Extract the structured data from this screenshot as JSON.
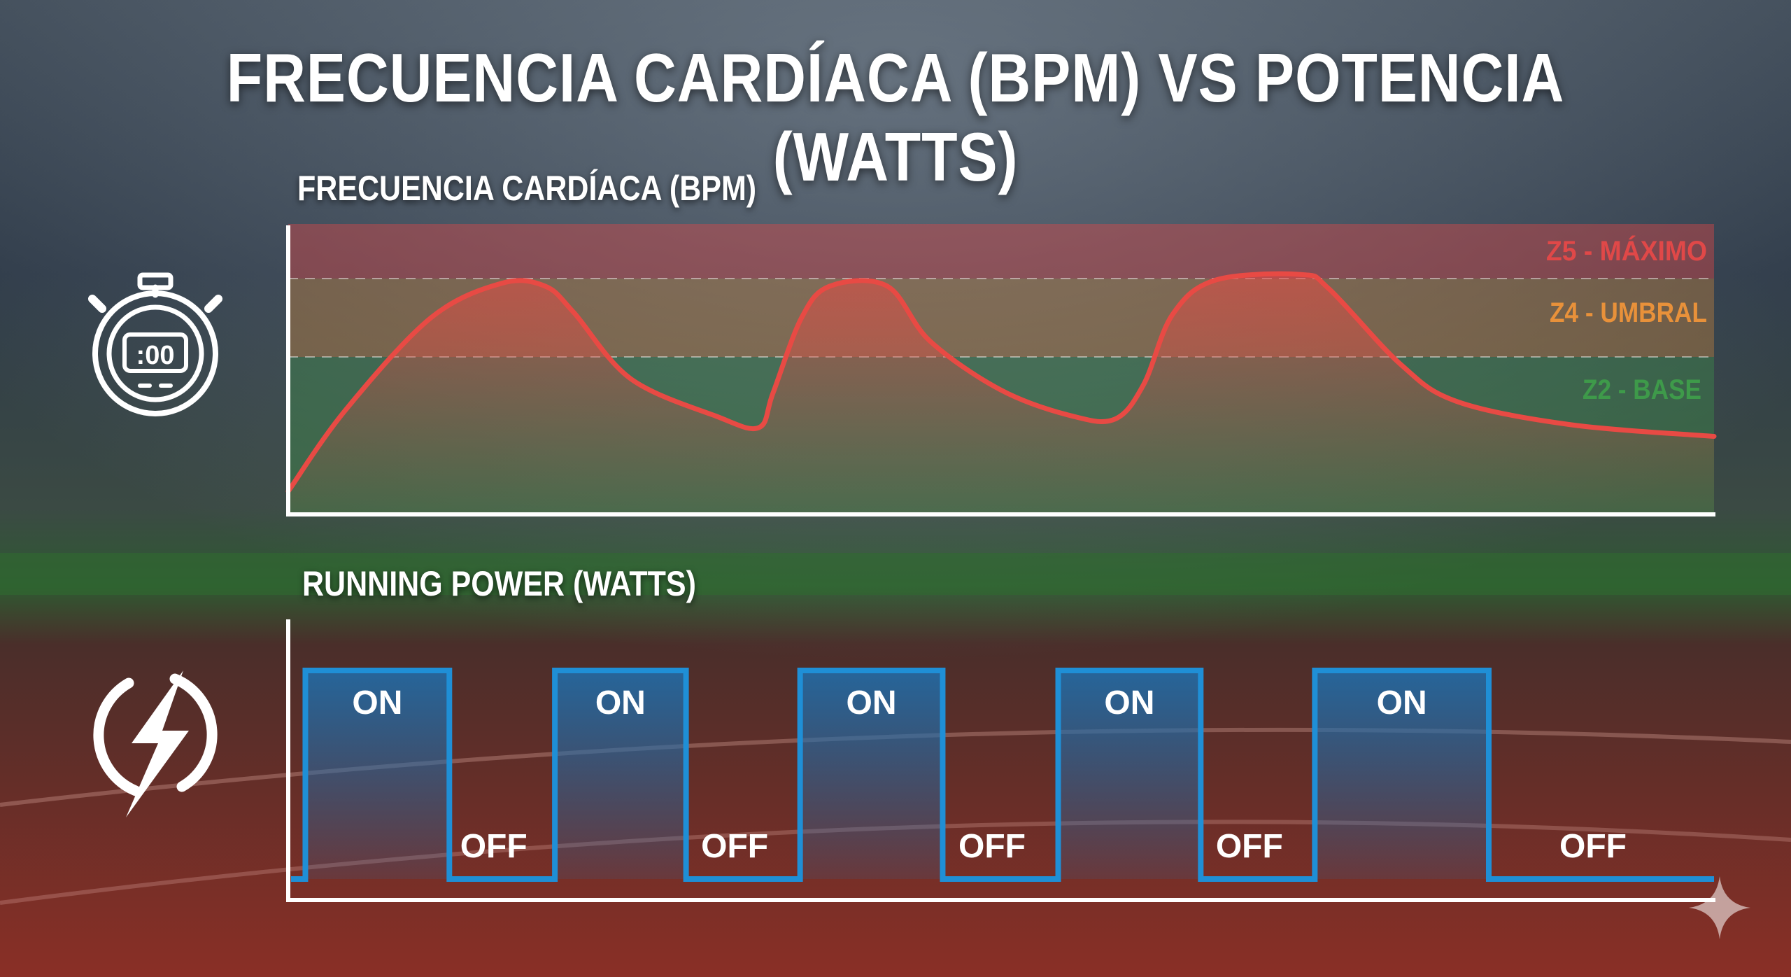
{
  "title": "FRECUENCIA CARDÍACA (BPM) VS POTENCIA (WATTS)",
  "colors": {
    "heart_rate_line": "#e84a44",
    "zone5": "#e04848",
    "zone4": "#e8913a",
    "zone2": "#3e9a4a",
    "power_line": "#1f8fd6",
    "axis": "#ffffff",
    "text": "#ffffff"
  },
  "icons": {
    "heart_rate_panel": "stopwatch-icon",
    "power_panel": "lightning-bolt-icon",
    "corner": "sparkle-icon"
  },
  "stopwatch_display": ":00",
  "chart_data": [
    {
      "type": "line",
      "title": "FRECUENCIA CARDÍACA (BPM)",
      "xlabel": "",
      "ylabel": "",
      "zones": [
        {
          "label": "Z5 - MÁXIMO",
          "color": "#e04848"
        },
        {
          "label": "Z4 - UMBRAL",
          "color": "#e8913a"
        },
        {
          "label": "Z2 - BASE",
          "color": "#3e9a4a"
        }
      ],
      "relative_scale": {
        "min": 0,
        "max": 100,
        "zone4_threshold": 54,
        "zone5_threshold": 81
      },
      "points": [
        [
          0,
          8
        ],
        [
          4,
          36
        ],
        [
          10,
          68
        ],
        [
          15,
          80
        ],
        [
          18,
          79
        ],
        [
          20,
          70
        ],
        [
          24,
          47
        ],
        [
          30,
          34
        ],
        [
          33,
          30
        ],
        [
          34,
          42
        ],
        [
          36,
          68
        ],
        [
          38,
          79
        ],
        [
          42,
          79
        ],
        [
          45,
          60
        ],
        [
          50,
          43
        ],
        [
          55,
          34
        ],
        [
          58,
          33
        ],
        [
          60,
          45
        ],
        [
          62,
          69
        ],
        [
          65,
          81
        ],
        [
          71,
          83
        ],
        [
          73,
          78
        ],
        [
          78,
          52
        ],
        [
          82,
          39
        ],
        [
          90,
          31
        ],
        [
          100,
          27
        ]
      ]
    },
    {
      "type": "line",
      "title": "RUNNING POWER (WATTS)",
      "xlabel": "",
      "ylabel": "",
      "levels": {
        "on": 1,
        "off": 0
      },
      "segments": [
        {
          "label": "ON",
          "state": "on",
          "start": 1.2,
          "end": 11.3
        },
        {
          "label": "OFF",
          "state": "off",
          "start": 11.3,
          "end": 18.7
        },
        {
          "label": "ON",
          "state": "on",
          "start": 18.7,
          "end": 27.9
        },
        {
          "label": "OFF",
          "state": "off",
          "start": 27.9,
          "end": 35.9
        },
        {
          "label": "ON",
          "state": "on",
          "start": 35.9,
          "end": 45.9
        },
        {
          "label": "OFF",
          "state": "off",
          "start": 45.9,
          "end": 54.0
        },
        {
          "label": "ON",
          "state": "on",
          "start": 54.0,
          "end": 64.0
        },
        {
          "label": "OFF",
          "state": "off",
          "start": 64.0,
          "end": 72.0
        },
        {
          "label": "ON",
          "state": "on",
          "start": 72.0,
          "end": 84.2
        },
        {
          "label": "OFF",
          "state": "off",
          "start": 84.2,
          "end": 100
        }
      ]
    }
  ]
}
